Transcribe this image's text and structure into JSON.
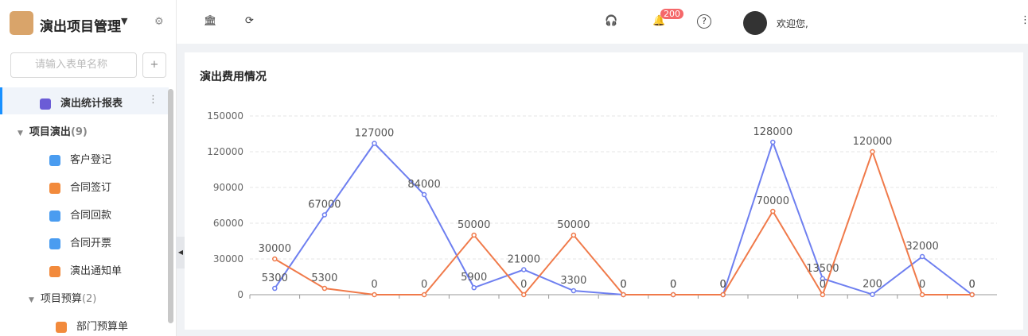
{
  "sidebar": {
    "app_title": "演出项目管理",
    "search_placeholder": "请输入表单名称",
    "active_item": "演出统计报表",
    "groups": [
      {
        "label": "项目演出",
        "count": "(9)",
        "items": [
          "客户登记",
          "合同签订",
          "合同回款",
          "合同开票",
          "演出通知单"
        ]
      },
      {
        "label": "项目预算",
        "count": "(2)",
        "items": [
          "部门预算单"
        ]
      }
    ]
  },
  "header": {
    "badge": "200",
    "welcome": "欢迎您,"
  },
  "chart_data": {
    "type": "line",
    "title": "演出费用情况",
    "categories": [
      null,
      null,
      null,
      null,
      null,
      null,
      null,
      null,
      null,
      null,
      null,
      null,
      null,
      null,
      null
    ],
    "series": [
      {
        "color": "#6e7ff0",
        "values": [
          5300,
          67000,
          127000,
          84000,
          5900,
          21000,
          3300,
          0,
          0,
          0,
          128000,
          13500,
          200,
          32000,
          0
        ]
      },
      {
        "color": "#f07a4a",
        "values": [
          30000,
          5300,
          0,
          0,
          50000,
          0,
          50000,
          0,
          0,
          0,
          70000,
          0,
          120000,
          0,
          0
        ]
      }
    ],
    "ylim": [
      0,
      150000
    ],
    "yticks": [
      0,
      30000,
      60000,
      90000,
      120000,
      150000
    ],
    "grid": true
  }
}
